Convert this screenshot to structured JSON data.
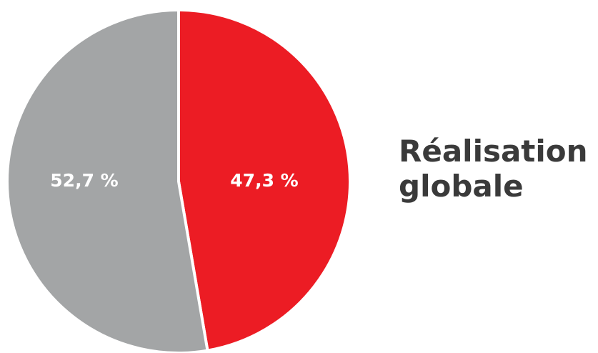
{
  "chart_data": {
    "type": "pie",
    "title_lines": [
      "Réalisation",
      "globale"
    ],
    "slices": [
      {
        "label": "47,3 %",
        "value": 47.3,
        "color": "#ec1c24"
      },
      {
        "label": "52,7 %",
        "value": 52.7,
        "color": "#a3a5a6"
      }
    ]
  }
}
